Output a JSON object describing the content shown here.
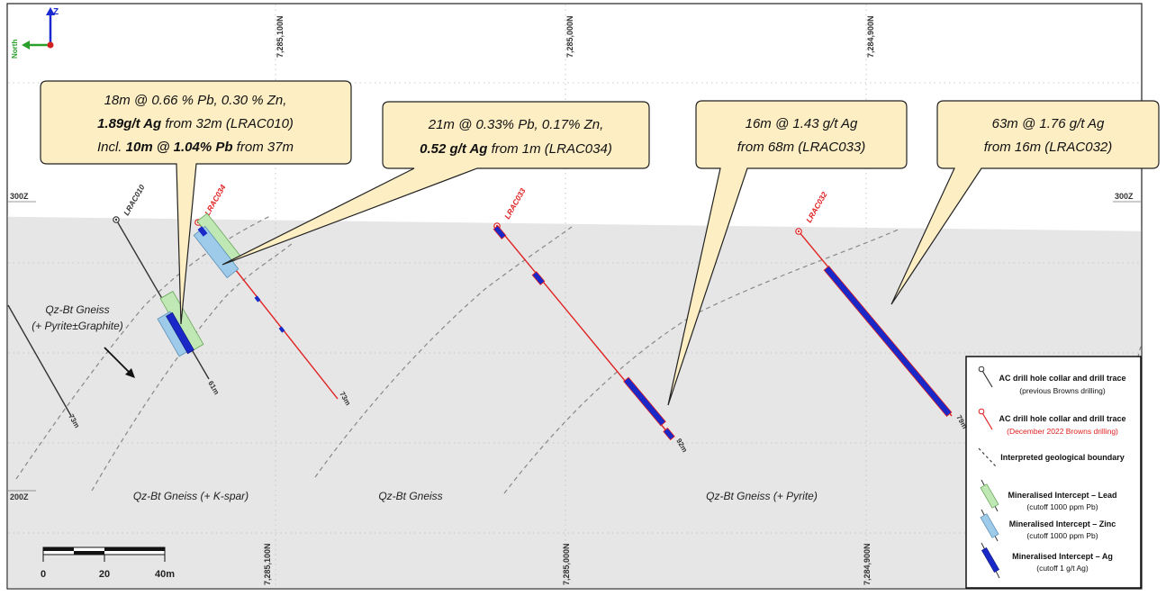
{
  "orientation": {
    "axis_label": "Z",
    "north_label": "North"
  },
  "level_labels": {
    "top_left": "300Z",
    "top_right": "300Z",
    "bottom_left": "200Z"
  },
  "northings_top": [
    "7,285,100N",
    "7,285,000N",
    "7,284,900N"
  ],
  "northings_bottom": [
    "7,285,100N",
    "7,285,000N",
    "7,284,900N"
  ],
  "callouts": [
    {
      "line1": "18m @ 0.66 % Pb, 0.30 % Zn,",
      "line2a": "1.89g/t Ag",
      "line2b": " from 32m (LRAC010)",
      "line3a": "Incl. ",
      "line3b": "10m @ 1.04% Pb",
      "line3c": " from 37m"
    },
    {
      "line1": "21m @ 0.33% Pb, 0.17% Zn,",
      "line2a": "0.52 g/t Ag",
      "line2b": " from 1m (LRAC034)"
    },
    {
      "line1": "16m @ 1.43 g/t Ag",
      "line2": "from 68m (LRAC033)"
    },
    {
      "line1": "63m @ 1.76 g/t Ag",
      "line2": "from 16m (LRAC032)"
    }
  ],
  "holes": [
    {
      "id": "LRAC010",
      "depth": "61m",
      "color": "#333333"
    },
    {
      "id": "LRAC034",
      "depth": "73m",
      "color": "#e02020"
    },
    {
      "id": "LRAC033",
      "depth": "92m",
      "color": "#e02020"
    },
    {
      "id": "LRAC032",
      "depth": "79m",
      "color": "#e02020"
    },
    {
      "id": "",
      "depth": "73m",
      "color": "#333333"
    }
  ],
  "geology": {
    "gneiss_graphite_1": "Qz-Bt Gneiss",
    "gneiss_graphite_2": "(+ Pyrite±Graphite)",
    "kspar": "Qz-Bt Gneiss (+ K-spar)",
    "plain": "Qz-Bt Gneiss",
    "pyrite": "Qz-Bt Gneiss (+ Pyrite)"
  },
  "scale_bar": {
    "labels": [
      "0",
      "20",
      "40m"
    ]
  },
  "legend": [
    {
      "title": "AC drill hole collar and drill trace",
      "sub": "(previous Browns drilling)",
      "icon": "collar-black"
    },
    {
      "title": "AC drill hole collar and drill trace",
      "sub": "(December 2022 Browns drilling)",
      "icon": "collar-red"
    },
    {
      "title": "Interpreted geological boundary",
      "sub": "",
      "icon": "dashed-line"
    },
    {
      "title": "Mineralised Intercept – Lead",
      "sub": "(cutoff 1000 ppm Pb)",
      "icon": "green-bar"
    },
    {
      "title": "Mineralised Intercept – Zinc",
      "sub": "(cutoff 1000 ppm Pb)",
      "icon": "blue-bar"
    },
    {
      "title": "Mineralised Intercept – Ag",
      "sub": "(cutoff 1 g/t Ag)",
      "icon": "navy-bar"
    }
  ],
  "colors": {
    "ground": "#e6e6e6",
    "callout_fill": "#fdeec4",
    "lead": "#bfe8b4",
    "zinc": "#9fcbea",
    "silver": "#1a28c8",
    "new_trace": "#e02020"
  }
}
